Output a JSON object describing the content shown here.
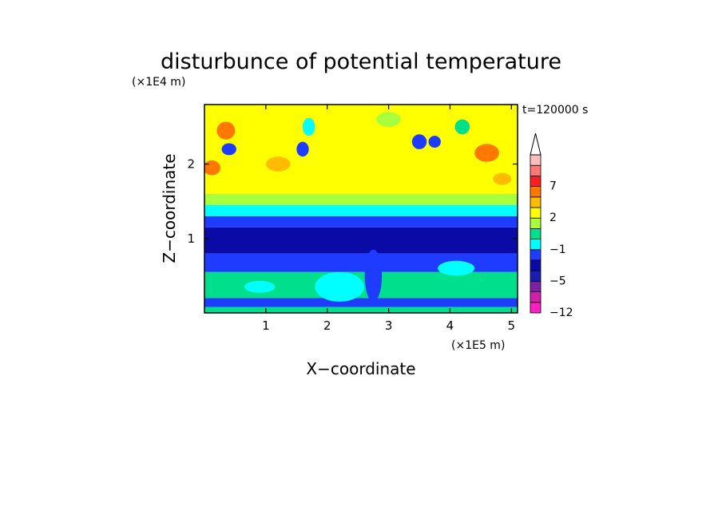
{
  "chart_data": {
    "type": "heatmap",
    "title": "disturbunce of potential temperature",
    "xlabel": "X−coordinate",
    "ylabel": "Z−coordinate",
    "x_unit": "(×1E5 m)",
    "y_unit": "(×1E4 m)",
    "time_label": "t=120000 s",
    "x_ticks": [
      {
        "value": 1,
        "label": "1"
      },
      {
        "value": 2,
        "label": "2"
      },
      {
        "value": 3,
        "label": "3"
      },
      {
        "value": 4,
        "label": "4"
      },
      {
        "value": 5,
        "label": "5"
      }
    ],
    "y_ticks": [
      {
        "value": 1,
        "label": "1"
      },
      {
        "value": 2,
        "label": "2"
      }
    ],
    "xlim": [
      0,
      5.1
    ],
    "ylim": [
      0,
      2.8
    ],
    "colorbar": {
      "extend_max": true,
      "levels": [
        {
          "label": "−12",
          "color": "#ff1fbf"
        },
        {
          "label": "",
          "color": "#d01fa8"
        },
        {
          "label": "",
          "color": "#7f1fa8"
        },
        {
          "label": "−5",
          "color": "#1c1cb4"
        },
        {
          "label": "",
          "color": "#0a0aa6"
        },
        {
          "label": "",
          "color": "#1e3cff"
        },
        {
          "label": "−1",
          "color": "#00ffff"
        },
        {
          "label": "",
          "color": "#00e08c"
        },
        {
          "label": "",
          "color": "#a8ff3c"
        },
        {
          "label": "2",
          "color": "#ffff00"
        },
        {
          "label": "",
          "color": "#ffbb00"
        },
        {
          "label": "",
          "color": "#ff7800"
        },
        {
          "label": "7",
          "color": "#ff1e1e"
        },
        {
          "label": "",
          "color": "#ff7878"
        },
        {
          "label": "",
          "color": "#ffbebe"
        }
      ]
    },
    "bands": [
      {
        "z_from": 0.0,
        "z_to": 0.08,
        "color": "#00e08c"
      },
      {
        "z_from": 0.08,
        "z_to": 0.2,
        "color": "#1e3cff"
      },
      {
        "z_from": 0.2,
        "z_to": 0.55,
        "color": "#00e08c"
      },
      {
        "z_from": 0.55,
        "z_to": 0.8,
        "color": "#1e3cff"
      },
      {
        "z_from": 0.8,
        "z_to": 1.15,
        "color": "#0a0aa6"
      },
      {
        "z_from": 1.15,
        "z_to": 1.3,
        "color": "#1e3cff"
      },
      {
        "z_from": 1.3,
        "z_to": 1.45,
        "color": "#00ffff"
      },
      {
        "z_from": 1.45,
        "z_to": 1.6,
        "color": "#a8ff3c"
      },
      {
        "z_from": 1.6,
        "z_to": 2.8,
        "color": "#ffff00"
      }
    ],
    "features": [
      {
        "x": 0.35,
        "z": 2.45,
        "rx": 0.15,
        "rz": 0.12,
        "color": "#ff7800"
      },
      {
        "x": 0.12,
        "z": 1.95,
        "rx": 0.14,
        "rz": 0.1,
        "color": "#ff7800"
      },
      {
        "x": 0.4,
        "z": 2.2,
        "rx": 0.12,
        "rz": 0.08,
        "color": "#1e3cff"
      },
      {
        "x": 1.6,
        "z": 2.2,
        "rx": 0.1,
        "rz": 0.1,
        "color": "#1e3cff"
      },
      {
        "x": 1.2,
        "z": 2.0,
        "rx": 0.2,
        "rz": 0.1,
        "color": "#ffbb00"
      },
      {
        "x": 3.5,
        "z": 2.3,
        "rx": 0.12,
        "rz": 0.1,
        "color": "#1e3cff"
      },
      {
        "x": 3.75,
        "z": 2.3,
        "rx": 0.1,
        "rz": 0.08,
        "color": "#1e3cff"
      },
      {
        "x": 4.6,
        "z": 2.15,
        "rx": 0.2,
        "rz": 0.12,
        "color": "#ff7800"
      },
      {
        "x": 4.2,
        "z": 2.5,
        "rx": 0.12,
        "rz": 0.1,
        "color": "#00e08c"
      },
      {
        "x": 4.85,
        "z": 1.8,
        "rx": 0.15,
        "rz": 0.08,
        "color": "#ffbb00"
      },
      {
        "x": 2.75,
        "z": 0.5,
        "rx": 0.14,
        "rz": 0.35,
        "color": "#1e3cff"
      },
      {
        "x": 2.2,
        "z": 0.35,
        "rx": 0.4,
        "rz": 0.2,
        "color": "#00ffff"
      },
      {
        "x": 4.1,
        "z": 0.6,
        "rx": 0.3,
        "rz": 0.1,
        "color": "#00ffff"
      },
      {
        "x": 0.9,
        "z": 0.35,
        "rx": 0.25,
        "rz": 0.08,
        "color": "#00ffff"
      },
      {
        "x": 1.7,
        "z": 2.5,
        "rx": 0.1,
        "rz": 0.12,
        "color": "#00ffff"
      },
      {
        "x": 3.0,
        "z": 2.6,
        "rx": 0.2,
        "rz": 0.1,
        "color": "#a8ff3c"
      }
    ]
  }
}
